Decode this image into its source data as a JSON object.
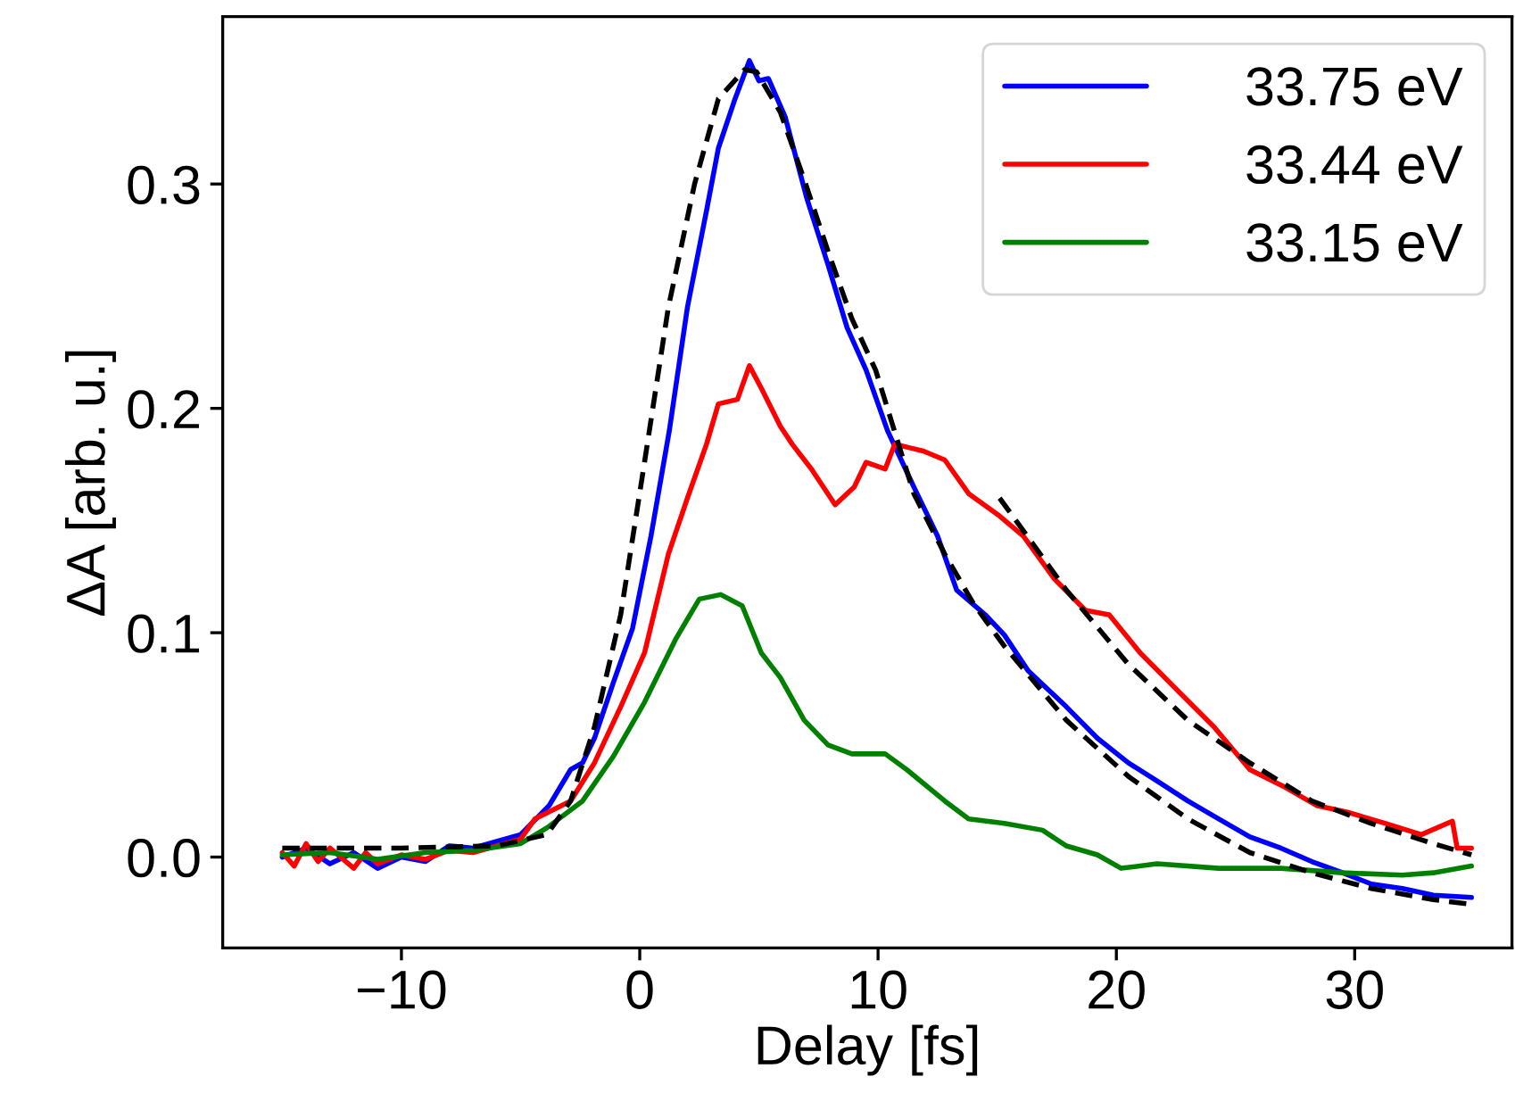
{
  "chart_data": {
    "type": "line",
    "xlabel": "Delay [fs]",
    "ylabel": "ΔA [arb. u.]",
    "xlim": [
      -17.5,
      36.6
    ],
    "xticks": [
      {
        "value": -10,
        "label": "−10"
      },
      0,
      10,
      20,
      30
    ],
    "ylim": [
      -0.0405,
      0.3746
    ],
    "yticks": [
      {
        "value": 0,
        "label": "0.0"
      },
      0.1,
      0.2,
      0.3
    ],
    "grid": false,
    "legend": "top right",
    "line_style": "solid",
    "marker": "none",
    "series": [
      {
        "name": "33.75 eV",
        "color": "#0000ff",
        "x": [
          -15,
          -14,
          -13,
          -12,
          -11,
          -10,
          -9,
          -8,
          -7,
          -6,
          -5,
          -3.8,
          -2.9,
          -2.4,
          -1.9,
          -1.1,
          -0.3,
          0.47,
          1.24,
          2.0,
          2.8,
          3.3,
          4.0,
          4.6,
          5.0,
          5.4,
          6.1,
          7.0,
          7.9,
          8.7,
          9.5,
          10.4,
          11.5,
          12.5,
          13.3,
          14.5,
          15.3,
          16.3,
          17.9,
          19.2,
          20.5,
          21.7,
          23.0,
          24.3,
          25.6,
          26.9,
          28.2,
          29.5,
          30.7,
          32.0,
          33.3,
          34.9
        ],
        "values": [
          0.0,
          0.004,
          -0.003,
          0.002,
          -0.005,
          0.0,
          -0.002,
          0.005,
          0.004,
          0.007,
          0.01,
          0.023,
          0.039,
          0.042,
          0.053,
          0.078,
          0.102,
          0.143,
          0.19,
          0.245,
          0.288,
          0.316,
          0.338,
          0.355,
          0.346,
          0.347,
          0.33,
          0.294,
          0.264,
          0.236,
          0.217,
          0.19,
          0.165,
          0.143,
          0.119,
          0.108,
          0.099,
          0.083,
          0.067,
          0.053,
          0.042,
          0.034,
          0.025,
          0.017,
          0.009,
          0.004,
          -0.002,
          -0.007,
          -0.012,
          -0.014,
          -0.017,
          -0.018
        ]
      },
      {
        "name": "33.44 eV",
        "color": "#ff0000",
        "x": [
          -15,
          -14.5,
          -14,
          -13.5,
          -13,
          -12,
          -11.5,
          -11,
          -10,
          -9,
          -8,
          -7,
          -6,
          -5,
          -4.4,
          -2.9,
          -1.9,
          -0.8,
          0.2,
          1.2,
          2.0,
          2.8,
          3.3,
          4.1,
          4.6,
          5.1,
          5.9,
          6.4,
          7.2,
          8.2,
          9.0,
          9.5,
          10.3,
          10.7,
          11.9,
          12.8,
          13.8,
          15.1,
          16.1,
          17.4,
          18.7,
          19.7,
          21.0,
          22.5,
          24.1,
          25.6,
          27.1,
          28.4,
          29.7,
          31.3,
          32.8,
          34.1,
          34.3,
          34.9
        ],
        "values": [
          0.002,
          -0.004,
          0.006,
          -0.002,
          0.004,
          -0.005,
          0.002,
          -0.003,
          0.001,
          -0.001,
          0.003,
          0.002,
          0.005,
          0.008,
          0.017,
          0.025,
          0.042,
          0.067,
          0.091,
          0.135,
          0.16,
          0.184,
          0.202,
          0.204,
          0.219,
          0.209,
          0.192,
          0.184,
          0.173,
          0.157,
          0.165,
          0.176,
          0.173,
          0.184,
          0.181,
          0.177,
          0.162,
          0.152,
          0.143,
          0.124,
          0.11,
          0.108,
          0.091,
          0.075,
          0.058,
          0.039,
          0.031,
          0.023,
          0.02,
          0.015,
          0.01,
          0.016,
          0.004,
          0.004
        ]
      },
      {
        "name": "33.15 eV",
        "color": "#008000",
        "x": [
          -15,
          -13,
          -11,
          -9,
          -7,
          -5,
          -3.9,
          -2.4,
          -1.1,
          0.2,
          1.5,
          2.5,
          3.4,
          4.3,
          5.1,
          5.9,
          6.9,
          7.9,
          8.9,
          10.3,
          11.2,
          12.8,
          13.8,
          15.3,
          16.9,
          17.9,
          19.2,
          20.2,
          21.7,
          24.3,
          26.9,
          29.5,
          32.0,
          33.3,
          34.9
        ],
        "values": [
          0.001,
          0.002,
          -0.001,
          0.002,
          0.003,
          0.006,
          0.013,
          0.025,
          0.045,
          0.069,
          0.097,
          0.115,
          0.117,
          0.112,
          0.091,
          0.08,
          0.061,
          0.05,
          0.046,
          0.046,
          0.039,
          0.025,
          0.017,
          0.015,
          0.012,
          0.005,
          0.001,
          -0.005,
          -0.003,
          -0.005,
          -0.005,
          -0.007,
          -0.008,
          -0.007,
          -0.004
        ]
      },
      {
        "color": "#000000",
        "line_style": "dashed",
        "x": [
          -15,
          -10,
          -6,
          -3.9,
          -2.9,
          -1.9,
          -0.8,
          0.2,
          1.2,
          2.3,
          3.3,
          4.4,
          4.9,
          5.9,
          6.9,
          7.9,
          8.9,
          9.9,
          11.5,
          12.8,
          14.0,
          15.3,
          17.9,
          20.5,
          23.0,
          25.6,
          28.2,
          30.7,
          33.3,
          34.9
        ],
        "values": [
          0.004,
          0.004,
          0.005,
          0.01,
          0.025,
          0.058,
          0.108,
          0.176,
          0.245,
          0.3,
          0.338,
          0.351,
          0.35,
          0.332,
          0.302,
          0.27,
          0.24,
          0.217,
          0.162,
          0.135,
          0.113,
          0.094,
          0.061,
          0.036,
          0.017,
          0.002,
          -0.007,
          -0.014,
          -0.019,
          -0.021
        ]
      },
      {
        "color": "#000000",
        "line_style": "dashed",
        "x": [
          15.1,
          17.9,
          20.5,
          23.0,
          25.6,
          28.2,
          30.7,
          33.3,
          34.9
        ],
        "values": [
          0.16,
          0.119,
          0.086,
          0.061,
          0.042,
          0.025,
          0.015,
          0.006,
          0.001
        ]
      }
    ]
  }
}
